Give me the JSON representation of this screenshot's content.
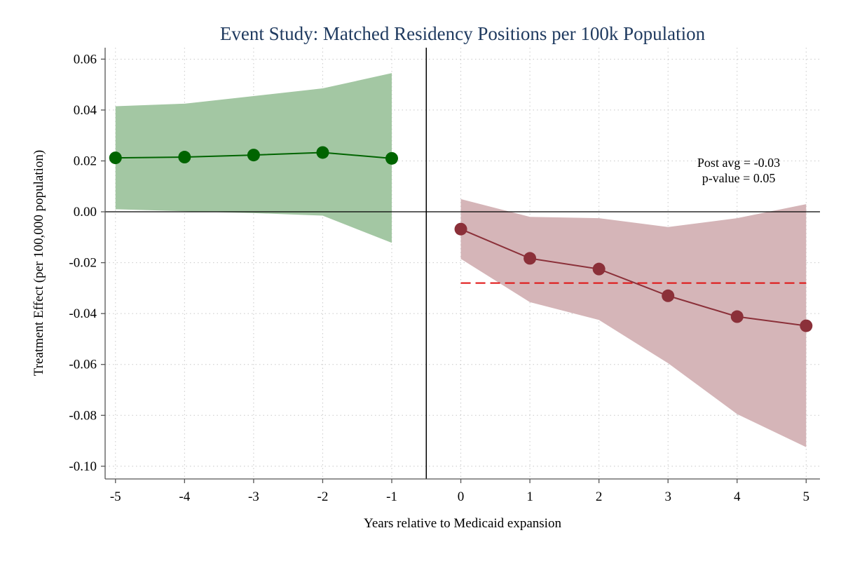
{
  "chart_data": {
    "type": "line",
    "title": "Event Study: Matched Residency Positions per 100k Population",
    "xlabel": "Years relative to Medicaid expansion",
    "ylabel": "Treatment Effect (per 100,000 population)",
    "xlim": [
      -5.15,
      5.2
    ],
    "ylim": [
      -0.105,
      0.0645
    ],
    "x_ticks": [
      {
        "value": -5,
        "label": "-5"
      },
      {
        "value": -4,
        "label": "-4"
      },
      {
        "value": -3,
        "label": "-3"
      },
      {
        "value": -2,
        "label": "-2"
      },
      {
        "value": -1,
        "label": "-1"
      },
      {
        "value": 0,
        "label": "0"
      },
      {
        "value": 1,
        "label": "1"
      },
      {
        "value": 2,
        "label": "2"
      },
      {
        "value": 3,
        "label": "3"
      },
      {
        "value": 4,
        "label": "4"
      },
      {
        "value": 5,
        "label": "5"
      }
    ],
    "y_ticks": [
      {
        "value": 0.06,
        "label": "0.06"
      },
      {
        "value": 0.04,
        "label": "0.04"
      },
      {
        "value": 0.02,
        "label": "0.02"
      },
      {
        "value": 0.0,
        "label": "0.00"
      },
      {
        "value": -0.02,
        "label": "-0.02"
      },
      {
        "value": -0.04,
        "label": "-0.04"
      },
      {
        "value": -0.06,
        "label": "-0.06"
      },
      {
        "value": -0.08,
        "label": "-0.08"
      },
      {
        "value": -0.1,
        "label": "-0.10"
      }
    ],
    "grid": true,
    "event_line_x": -0.5,
    "zero_line_y": 0.0,
    "series": [
      {
        "period": "pre",
        "color": "#006400",
        "band_color": "#a3c7a3",
        "x": [
          -5,
          -4,
          -3,
          -2,
          -1
        ],
        "y": [
          0.0212,
          0.0215,
          0.0223,
          0.0233,
          0.021
        ],
        "ci_low": [
          0.001,
          0.0002,
          -0.0005,
          -0.0015,
          -0.0122
        ],
        "ci_high": [
          0.0415,
          0.0425,
          0.0455,
          0.0485,
          0.0545
        ]
      },
      {
        "period": "post",
        "color": "#8b3039",
        "band_color": "#d5b5b8",
        "x": [
          0,
          1,
          2,
          3,
          4,
          5
        ],
        "y": [
          -0.0068,
          -0.0183,
          -0.0225,
          -0.033,
          -0.0412,
          -0.0448
        ],
        "ci_low": [
          -0.0185,
          -0.0355,
          -0.0425,
          -0.0595,
          -0.0795,
          -0.0925
        ],
        "ci_high": [
          0.005,
          -0.002,
          -0.0025,
          -0.006,
          -0.0025,
          0.003
        ]
      }
    ],
    "post_average": {
      "value": -0.028,
      "x_start": 0,
      "x_end": 5,
      "color": "#e01010"
    },
    "annotation": {
      "line1": "Post avg = -0.03",
      "line2": "p-value = 0.05"
    }
  }
}
